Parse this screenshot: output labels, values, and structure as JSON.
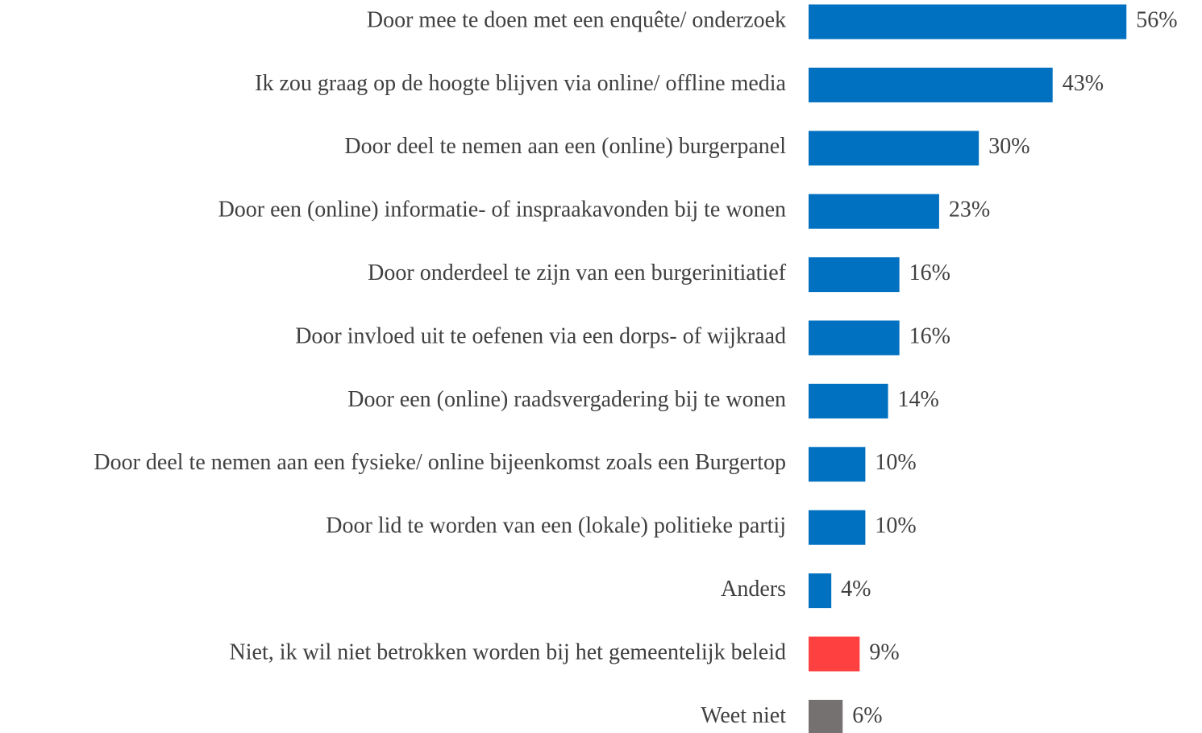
{
  "chart_data": {
    "type": "bar",
    "orientation": "horizontal",
    "categories": [
      "Door mee te doen met een enquête/ onderzoek",
      "Ik zou graag op de hoogte blijven via online/ offline media",
      "Door deel te nemen aan een (online) burgerpanel",
      "Door een (online) informatie- of inspraakavonden bij te wonen",
      "Door onderdeel te zijn van een burgerinitiatief",
      "Door invloed uit te oefenen via een dorps- of wijkraad",
      "Door een (online) raadsvergadering bij te wonen",
      "Door deel te nemen aan een fysieke/ online bijeenkomst zoals een Burgertop",
      "Door lid te worden van een (lokale) politieke partij",
      "Anders",
      "Niet, ik wil niet betrokken worden bij het gemeentelijk beleid",
      "Weet niet"
    ],
    "values": [
      56,
      43,
      30,
      23,
      16,
      16,
      14,
      10,
      10,
      4,
      9,
      6
    ],
    "value_labels": [
      "56%",
      "43%",
      "30%",
      "23%",
      "16%",
      "16%",
      "14%",
      "10%",
      "10%",
      "4%",
      "9%",
      "6%"
    ],
    "colors": [
      "#0070c0",
      "#0070c0",
      "#0070c0",
      "#0070c0",
      "#0070c0",
      "#0070c0",
      "#0070c0",
      "#0070c0",
      "#0070c0",
      "#0070c0",
      "#ff4040",
      "#767171"
    ]
  }
}
